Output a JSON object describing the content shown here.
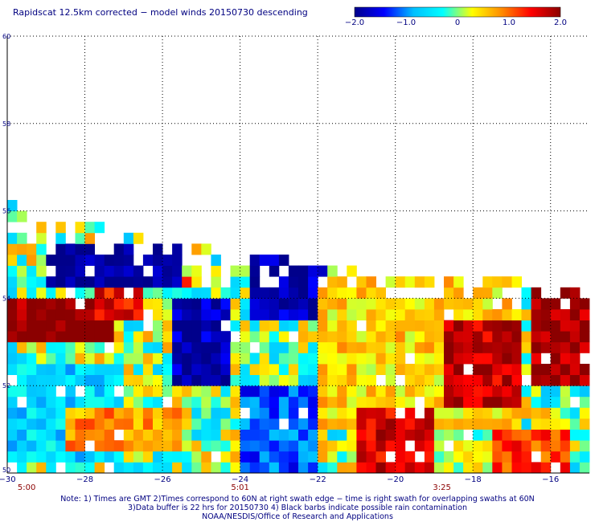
{
  "chart_data": {
    "type": "heatmap",
    "title": "Rapidscat 12.5km corrected − model winds 20150730 descending",
    "colorbar": {
      "range": [
        -2.0,
        2.0
      ],
      "tick_values": [
        -2.0,
        -1.0,
        0,
        1.0,
        2.0
      ],
      "tick_labels": [
        "−2.0",
        "−1.0",
        "0",
        "1.0",
        "2.0"
      ],
      "colors": [
        "#00008b",
        "#0000ff",
        "#00bfff",
        "#00ffff",
        "#ffff00",
        "#ff8c00",
        "#ff0000",
        "#8b0000"
      ]
    },
    "xlim": [
      -30,
      -15
    ],
    "ylim": [
      50,
      60
    ],
    "x_ticks": [
      -30,
      -28,
      -26,
      -24,
      -22,
      -20,
      -18,
      -16
    ],
    "x_tick_labels": [
      "−30",
      "−28",
      "−26",
      "−24",
      "−22",
      "−20",
      "−18",
      "−16"
    ],
    "y_ticks": [
      50,
      52,
      54,
      56,
      58,
      60
    ],
    "y_tick_labels": [
      "50",
      "52",
      "54",
      "56",
      "58",
      "60"
    ],
    "time_labels": [
      {
        "x": -29.5,
        "label": "5:00"
      },
      {
        "x": -24.0,
        "label": "5:01"
      },
      {
        "x": -18.8,
        "label": "3:25"
      }
    ],
    "grid": true,
    "swath_top_edge": {
      "x": [
        -30.0,
        -29.2,
        -28.0,
        -27.0,
        -26.0,
        -25.0,
        -24.0,
        -23.0,
        -22.0,
        -21.0,
        -20.0,
        -19.0,
        -18.0,
        -17.0,
        -16.0,
        -15.0
      ],
      "lat": [
        56.2,
        55.8,
        55.7,
        55.5,
        55.4,
        55.2,
        55.0,
        54.9,
        54.8,
        54.8,
        54.7,
        54.6,
        54.5,
        54.4,
        54.3,
        54.2
      ]
    },
    "regions": [
      {
        "lon": [
          -30.0,
          -27.3
        ],
        "lat": [
          53.0,
          54.0
        ],
        "value": 2.0
      },
      {
        "lon": [
          -27.8,
          -26.6
        ],
        "lat": [
          53.4,
          54.2
        ],
        "value": 1.5
      },
      {
        "lon": [
          -26.2,
          -25.2
        ],
        "lat": [
          54.2,
          54.6
        ],
        "value": 1.5
      },
      {
        "lon": [
          -29.0,
          -25.6
        ],
        "lat": [
          54.2,
          55.2
        ],
        "value": -2.0
      },
      {
        "lon": [
          -25.8,
          -24.2
        ],
        "lat": [
          52.0,
          54.0
        ],
        "value": -1.8
      },
      {
        "lon": [
          -23.8,
          -21.8
        ],
        "lat": [
          53.6,
          55.0
        ],
        "value": -1.8
      },
      {
        "lon": [
          -30.0,
          -27.0
        ],
        "lat": [
          50.2,
          52.6
        ],
        "value": -0.6
      },
      {
        "lon": [
          -28.5,
          -25.5
        ],
        "lat": [
          50.6,
          51.6
        ],
        "value": 0.8
      },
      {
        "lon": [
          -24.0,
          -22.0
        ],
        "lat": [
          50.0,
          52.0
        ],
        "value": -1.2
      },
      {
        "lon": [
          -22.0,
          -17.0
        ],
        "lat": [
          51.0,
          54.4
        ],
        "value": 0.5
      },
      {
        "lon": [
          -21.0,
          -19.0
        ],
        "lat": [
          50.0,
          51.4
        ],
        "value": 1.6
      },
      {
        "lon": [
          -18.8,
          -16.8
        ],
        "lat": [
          51.6,
          53.6
        ],
        "value": 1.7
      },
      {
        "lon": [
          -16.4,
          -15.0
        ],
        "lat": [
          52.0,
          54.2
        ],
        "value": 1.9
      },
      {
        "lon": [
          -17.5,
          -15.5
        ],
        "lat": [
          50.0,
          51.0
        ],
        "value": 1.2
      }
    ]
  },
  "notes": {
    "line1": "Note: 1) Times are GMT 2)Times correspond to 60N at right swath edge − time is right swath for overlapping swaths at 60N",
    "line2": "3)Data buffer is 22 hrs for 20150730 4) Black barbs indicate possible rain contamination",
    "line3": "NOAA/NESDIS/Office of Research and Applications"
  }
}
